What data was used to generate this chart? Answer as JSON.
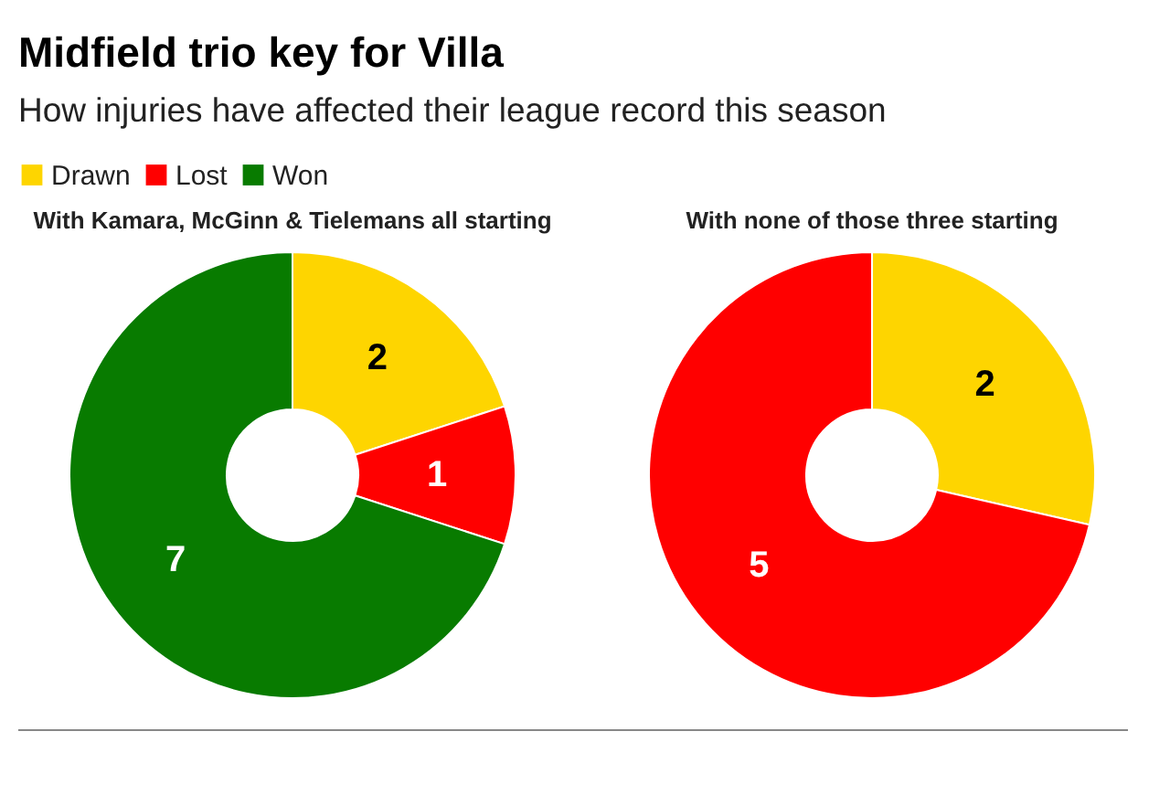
{
  "chart_data": {
    "type": "donut",
    "title": "Midfield trio key for Villa",
    "subtitle": "How injuries have affected their league record this season",
    "categories": [
      "Drawn",
      "Lost",
      "Won"
    ],
    "colors": [
      "#fed500",
      "#ff0000",
      "#087b00"
    ],
    "series": [
      {
        "name": "With Kamara, McGinn & Tielemans all starting",
        "values": [
          2,
          1,
          7
        ]
      },
      {
        "name": "With none of those three starting",
        "values": [
          2,
          5,
          null
        ]
      }
    ],
    "data_labels": true,
    "legend": "top left"
  }
}
